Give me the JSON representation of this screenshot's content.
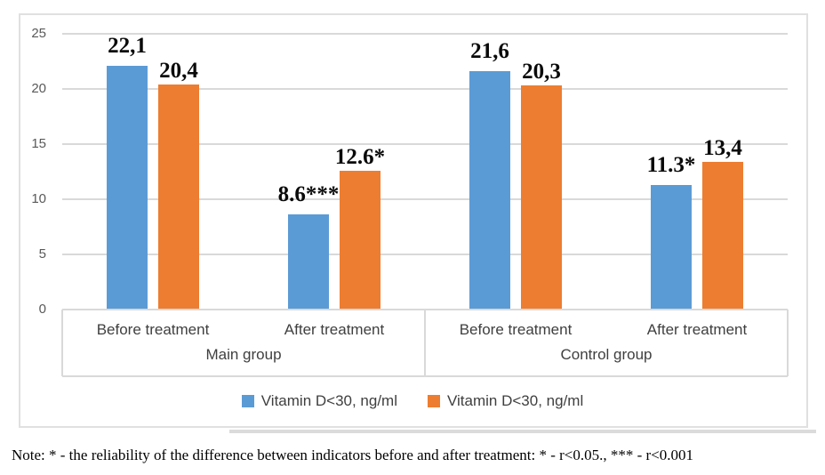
{
  "chart_data": {
    "type": "bar",
    "title": "",
    "xlabel": "",
    "ylabel": "",
    "ylim": [
      0,
      25
    ],
    "yticks": [
      0,
      5,
      10,
      15,
      20,
      25
    ],
    "grid": true,
    "legend_position": "bottom-center",
    "categories": [
      "Before treatment",
      "After treatment",
      "Before treatment",
      "After treatment"
    ],
    "group_labels": [
      {
        "label": "Main group",
        "spans_categories": [
          0,
          1
        ]
      },
      {
        "label": "Control group",
        "spans_categories": [
          2,
          3
        ]
      }
    ],
    "series": [
      {
        "name": "Vitamin D<30, ng/ml",
        "color": "#5B9BD5",
        "values": [
          22.1,
          8.6,
          21.6,
          11.3
        ],
        "data_labels": [
          "22,1",
          "8.6***",
          "21,6",
          "11.3*"
        ]
      },
      {
        "name": "Vitamin D<30, ng/ml",
        "color": "#ED7D31",
        "values": [
          20.4,
          12.6,
          20.3,
          13.4
        ],
        "data_labels": [
          "20,4",
          "12.6*",
          "20,3",
          "13,4"
        ]
      }
    ]
  },
  "note": "Note: * - the reliability of the difference between indicators before and after treatment: * - r<0.05., *** - r<0.001",
  "colors": {
    "series_blue": "#5B9BD5",
    "series_orange": "#ED7D31",
    "gridline": "#D9D9D9",
    "axis_text": "#595959",
    "category_text": "#3F3F3F",
    "frame_border": "#E0E0E0"
  }
}
